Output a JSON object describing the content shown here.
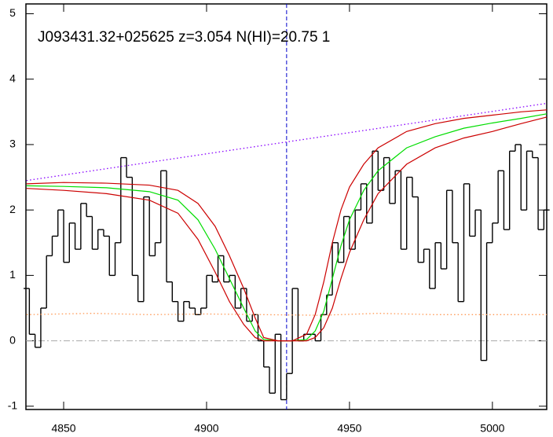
{
  "chart_data": {
    "type": "line",
    "title": "J093431.32+025625 z=3.054 N(HI)=20.75 1",
    "xlim": [
      4836.8,
      5019
    ],
    "ylim": [
      -1.05,
      5.15
    ],
    "xticks": [
      4850,
      4900,
      4950,
      5000
    ],
    "yticks": [
      -1,
      0,
      1,
      2,
      3,
      4,
      5
    ],
    "vline": 4928,
    "hline": 0,
    "series": [
      {
        "style": "step",
        "color": "#000000",
        "x": [
          4837,
          4839,
          4841,
          4843,
          4845,
          4847,
          4849,
          4851,
          4853,
          4855,
          4857,
          4859,
          4861,
          4863,
          4865,
          4867,
          4869,
          4871,
          4873,
          4875,
          4877,
          4879,
          4881,
          4883,
          4885,
          4887,
          4889,
          4891,
          4893,
          4895,
          4897,
          4899,
          4901,
          4903,
          4905,
          4907,
          4909,
          4911,
          4913,
          4915,
          4917,
          4919,
          4921,
          4923,
          4925,
          4927,
          4929,
          4931,
          4933,
          4935,
          4937,
          4939,
          4941,
          4943,
          4945,
          4947,
          4949,
          4951,
          4953,
          4955,
          4957,
          4959,
          4961,
          4963,
          4965,
          4967,
          4969,
          4971,
          4973,
          4975,
          4977,
          4979,
          4981,
          4983,
          4985,
          4987,
          4989,
          4991,
          4993,
          4995,
          4997,
          4999,
          5001,
          5003,
          5005,
          5007,
          5009,
          5011,
          5013,
          5015,
          5017,
          5019
        ],
        "values": [
          0.8,
          0.1,
          -0.1,
          0.5,
          1.3,
          1.6,
          2.0,
          1.2,
          1.8,
          1.4,
          2.1,
          1.9,
          1.4,
          1.7,
          1.6,
          1.0,
          1.5,
          2.8,
          2.5,
          1.0,
          0.6,
          2.2,
          1.3,
          1.5,
          2.6,
          0.9,
          0.6,
          0.3,
          0.6,
          0.5,
          0.4,
          0.5,
          1.0,
          0.9,
          1.3,
          0.9,
          1.0,
          0.5,
          0.8,
          0.3,
          0.4,
          0.0,
          -0.4,
          -0.8,
          0.1,
          -0.9,
          -0.5,
          0.8,
          0.0,
          0.1,
          0.1,
          0.0,
          0.4,
          0.7,
          1.5,
          1.2,
          1.9,
          1.4,
          2.0,
          2.4,
          1.8,
          2.9,
          2.3,
          2.8,
          2.1,
          2.6,
          1.4,
          2.5,
          2.2,
          1.2,
          1.4,
          0.8,
          1.5,
          1.1,
          2.3,
          1.5,
          0.6,
          2.4,
          1.6,
          2.0,
          -0.3,
          1.5,
          1.8,
          2.6,
          1.7,
          2.9,
          3.0,
          2.0,
          2.9,
          2.8,
          1.7,
          2.0
        ]
      },
      {
        "style": "solid",
        "color": "#00dd00",
        "x": [
          4837,
          4850,
          4865,
          4880,
          4890,
          4897,
          4903,
          4908,
          4913,
          4917,
          4920,
          4925,
          4930,
          4935,
          4938,
          4941,
          4944,
          4947,
          4950,
          4955,
          4960,
          4970,
          4980,
          4990,
          5000,
          5010,
          5019
        ],
        "values": [
          2.37,
          2.36,
          2.34,
          2.28,
          2.15,
          1.85,
          1.4,
          0.95,
          0.5,
          0.15,
          0.02,
          0,
          0,
          0.02,
          0.15,
          0.45,
          0.95,
          1.45,
          1.85,
          2.3,
          2.6,
          2.95,
          3.12,
          3.25,
          3.33,
          3.4,
          3.47
        ]
      },
      {
        "style": "solid",
        "color": "#cc0000",
        "x": [
          4837,
          4850,
          4865,
          4880,
          4890,
          4897,
          4903,
          4908,
          4913,
          4917,
          4920,
          4925,
          4930,
          4935,
          4938,
          4941,
          4944,
          4947,
          4950,
          4955,
          4960,
          4970,
          4980,
          4990,
          5000,
          5010,
          5019
        ],
        "values": [
          2.4,
          2.42,
          2.41,
          2.38,
          2.3,
          2.1,
          1.75,
          1.3,
          0.8,
          0.35,
          0.05,
          0,
          0,
          0.1,
          0.4,
          0.9,
          1.5,
          2.0,
          2.35,
          2.7,
          2.95,
          3.2,
          3.32,
          3.4,
          3.45,
          3.5,
          3.53
        ]
      },
      {
        "style": "solid",
        "color": "#cc0000",
        "x": [
          4837,
          4850,
          4865,
          4880,
          4890,
          4897,
          4903,
          4908,
          4913,
          4917,
          4920,
          4925,
          4930,
          4935,
          4938,
          4941,
          4944,
          4947,
          4950,
          4955,
          4960,
          4970,
          4980,
          4990,
          5000,
          5010,
          5019
        ],
        "values": [
          2.33,
          2.3,
          2.25,
          2.15,
          1.95,
          1.55,
          1.05,
          0.6,
          0.25,
          0.05,
          0,
          0,
          0,
          0,
          0.05,
          0.2,
          0.5,
          0.95,
          1.35,
          1.85,
          2.25,
          2.7,
          2.95,
          3.1,
          3.2,
          3.32,
          3.42
        ]
      },
      {
        "style": "dotted",
        "color": "#8800ff",
        "x": [
          4837,
          5019
        ],
        "values": [
          2.45,
          3.63
        ]
      },
      {
        "style": "dotted",
        "color": "#ff9955",
        "x": [
          4837,
          4860,
          4880,
          4900,
          4920,
          4940,
          4960,
          4980,
          5000,
          5019
        ],
        "values": [
          0.4,
          0.42,
          0.4,
          0.41,
          0.4,
          0.39,
          0.42,
          0.4,
          0.4,
          0.4
        ]
      }
    ]
  }
}
